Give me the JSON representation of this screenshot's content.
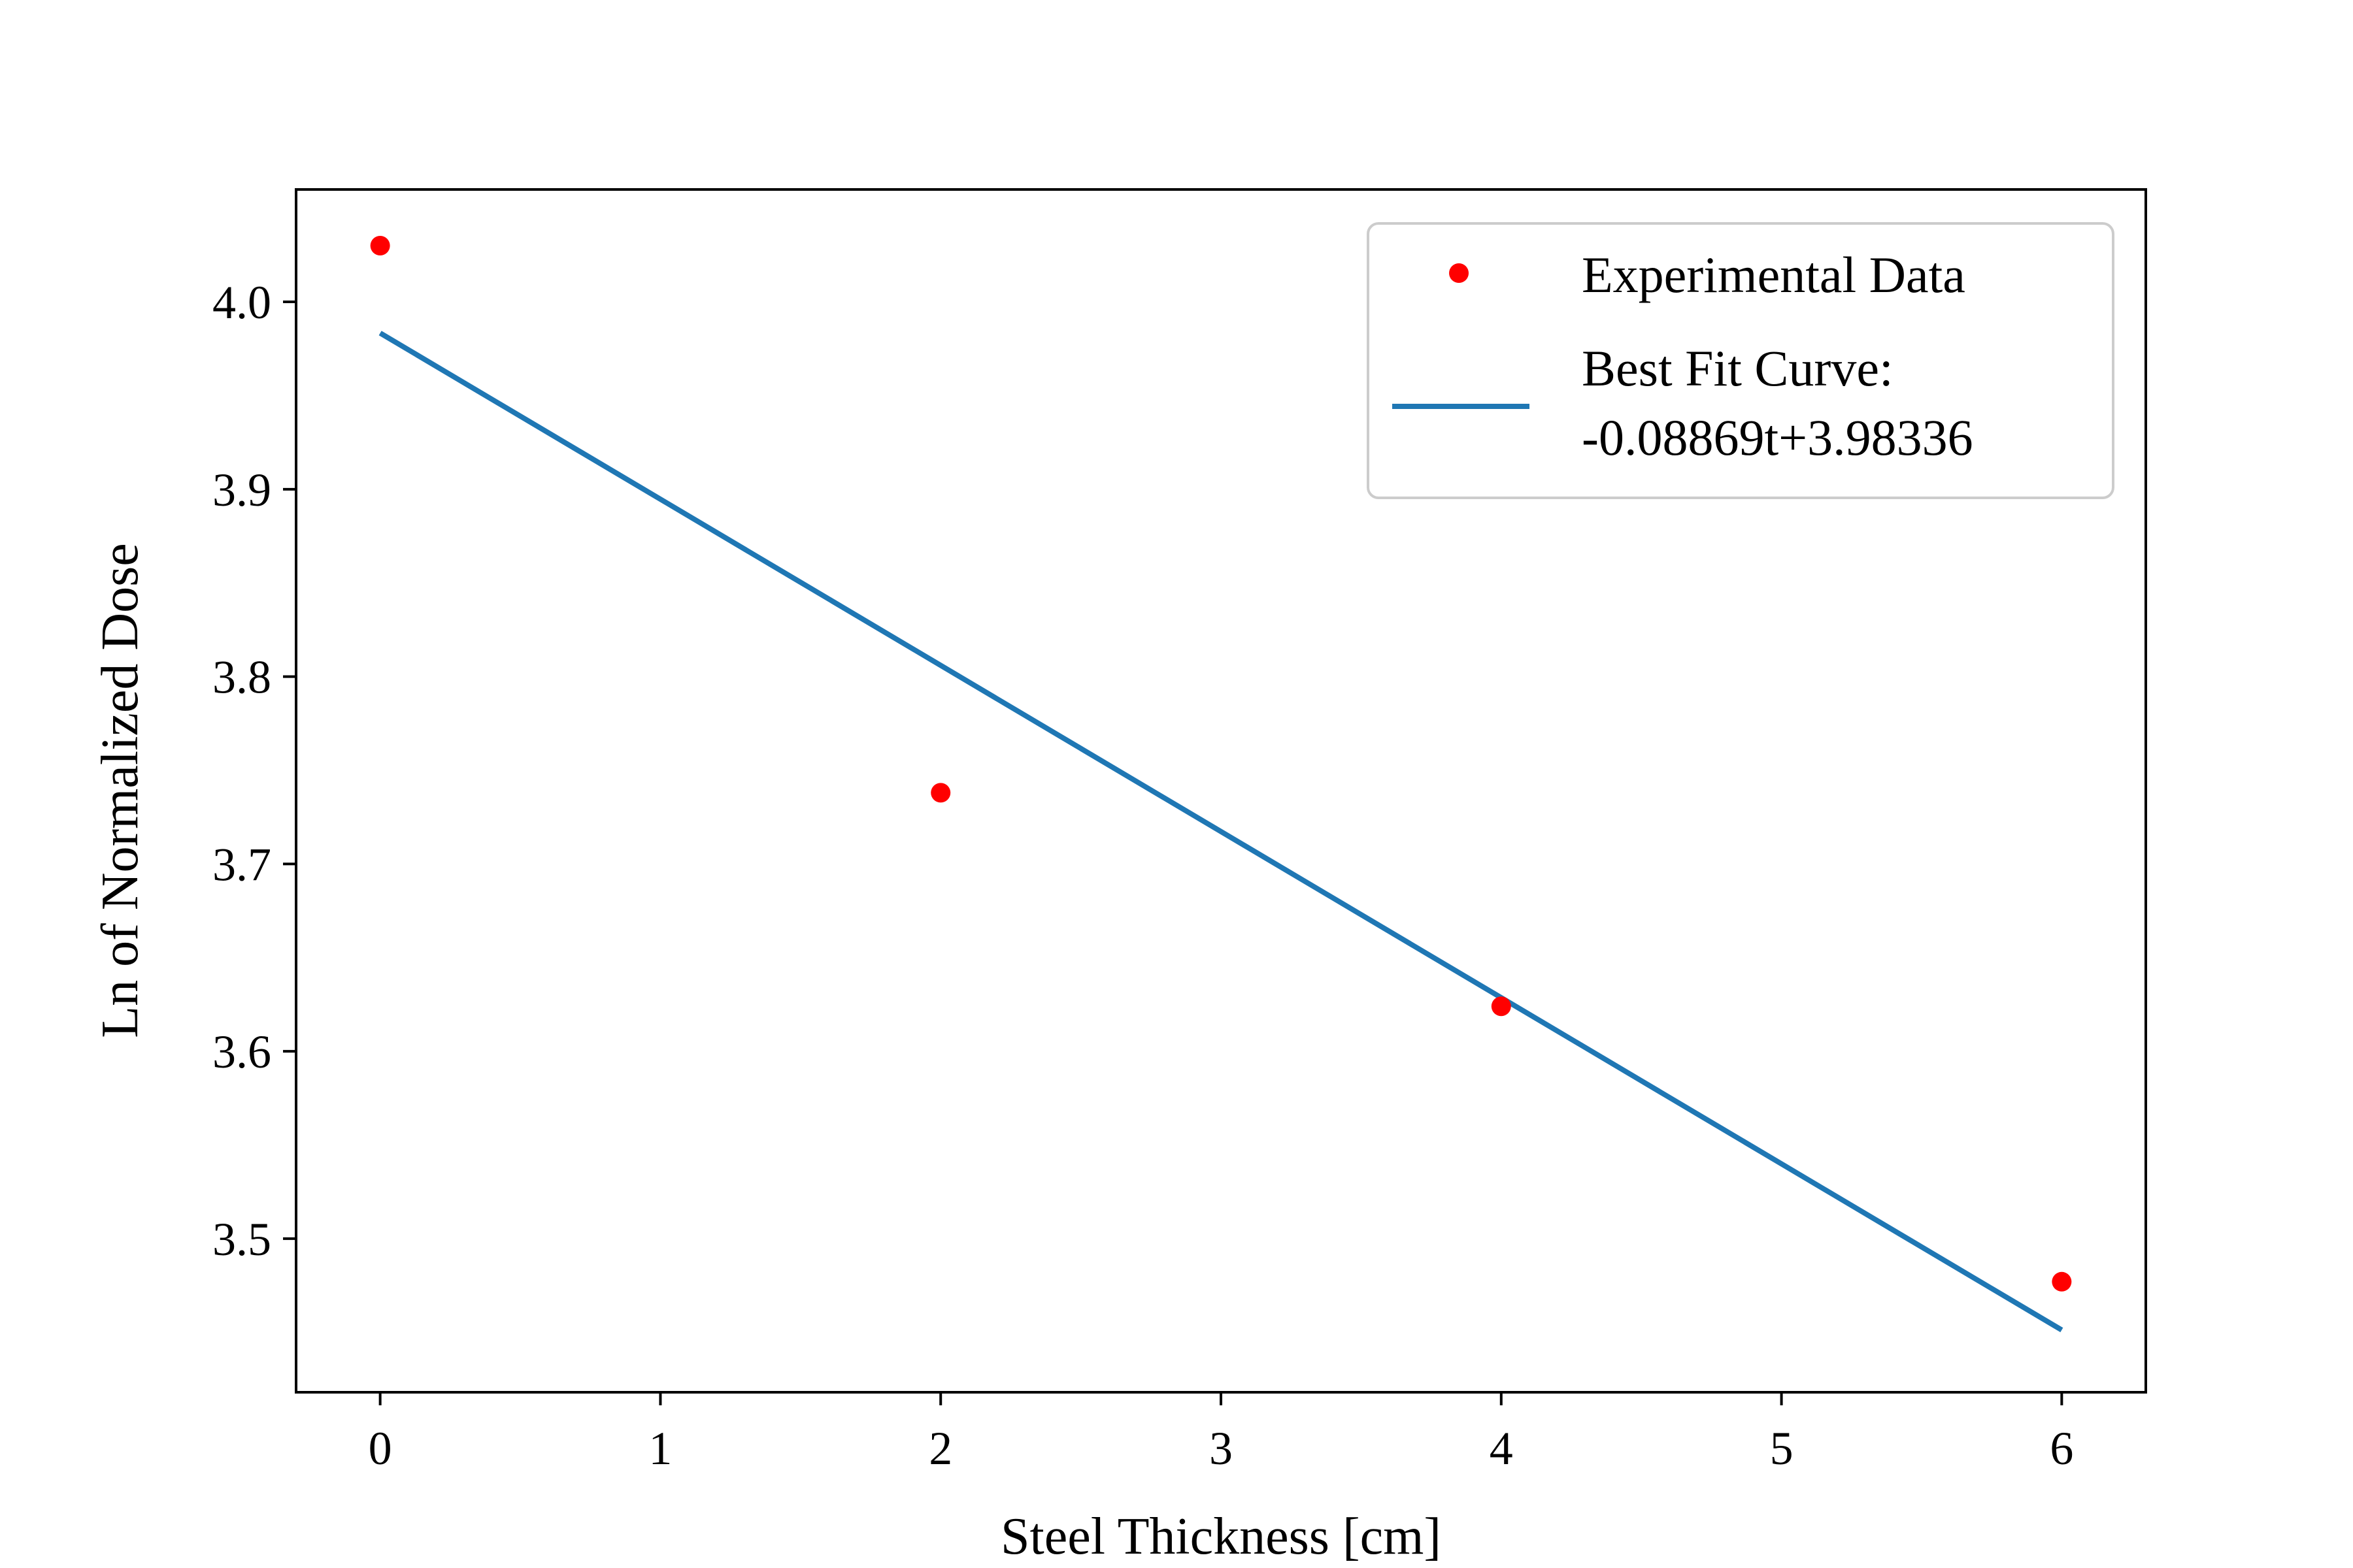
{
  "chart_data": {
    "type": "scatter",
    "xlabel": "Steel Thickness [cm]",
    "ylabel": "Ln of Normalized Dose",
    "xlim": [
      -0.3,
      6.3
    ],
    "ylim": [
      3.418,
      4.06
    ],
    "xticks": [
      0,
      1,
      2,
      3,
      4,
      5,
      6
    ],
    "xtick_labels": [
      "0",
      "1",
      "2",
      "3",
      "4",
      "5",
      "6"
    ],
    "yticks": [
      3.5,
      3.6,
      3.7,
      3.8,
      3.9,
      4.0
    ],
    "ytick_labels": [
      "3.5",
      "3.6",
      "3.7",
      "3.8",
      "3.9",
      "4.0"
    ],
    "grid": false,
    "legend_position": "top-right",
    "series": [
      {
        "name": "Experimental Data",
        "kind": "scatter",
        "color": "#ff0000",
        "x": [
          0,
          2,
          4,
          6
        ],
        "y": [
          4.03,
          3.738,
          3.624,
          3.477
        ]
      },
      {
        "name": "Best Fit Curve:",
        "name_line2": "-0.08869t+3.98336",
        "kind": "line",
        "color": "#1f77b4",
        "slope": -0.08869,
        "intercept": 3.98336,
        "x": [
          0,
          6
        ]
      }
    ]
  }
}
